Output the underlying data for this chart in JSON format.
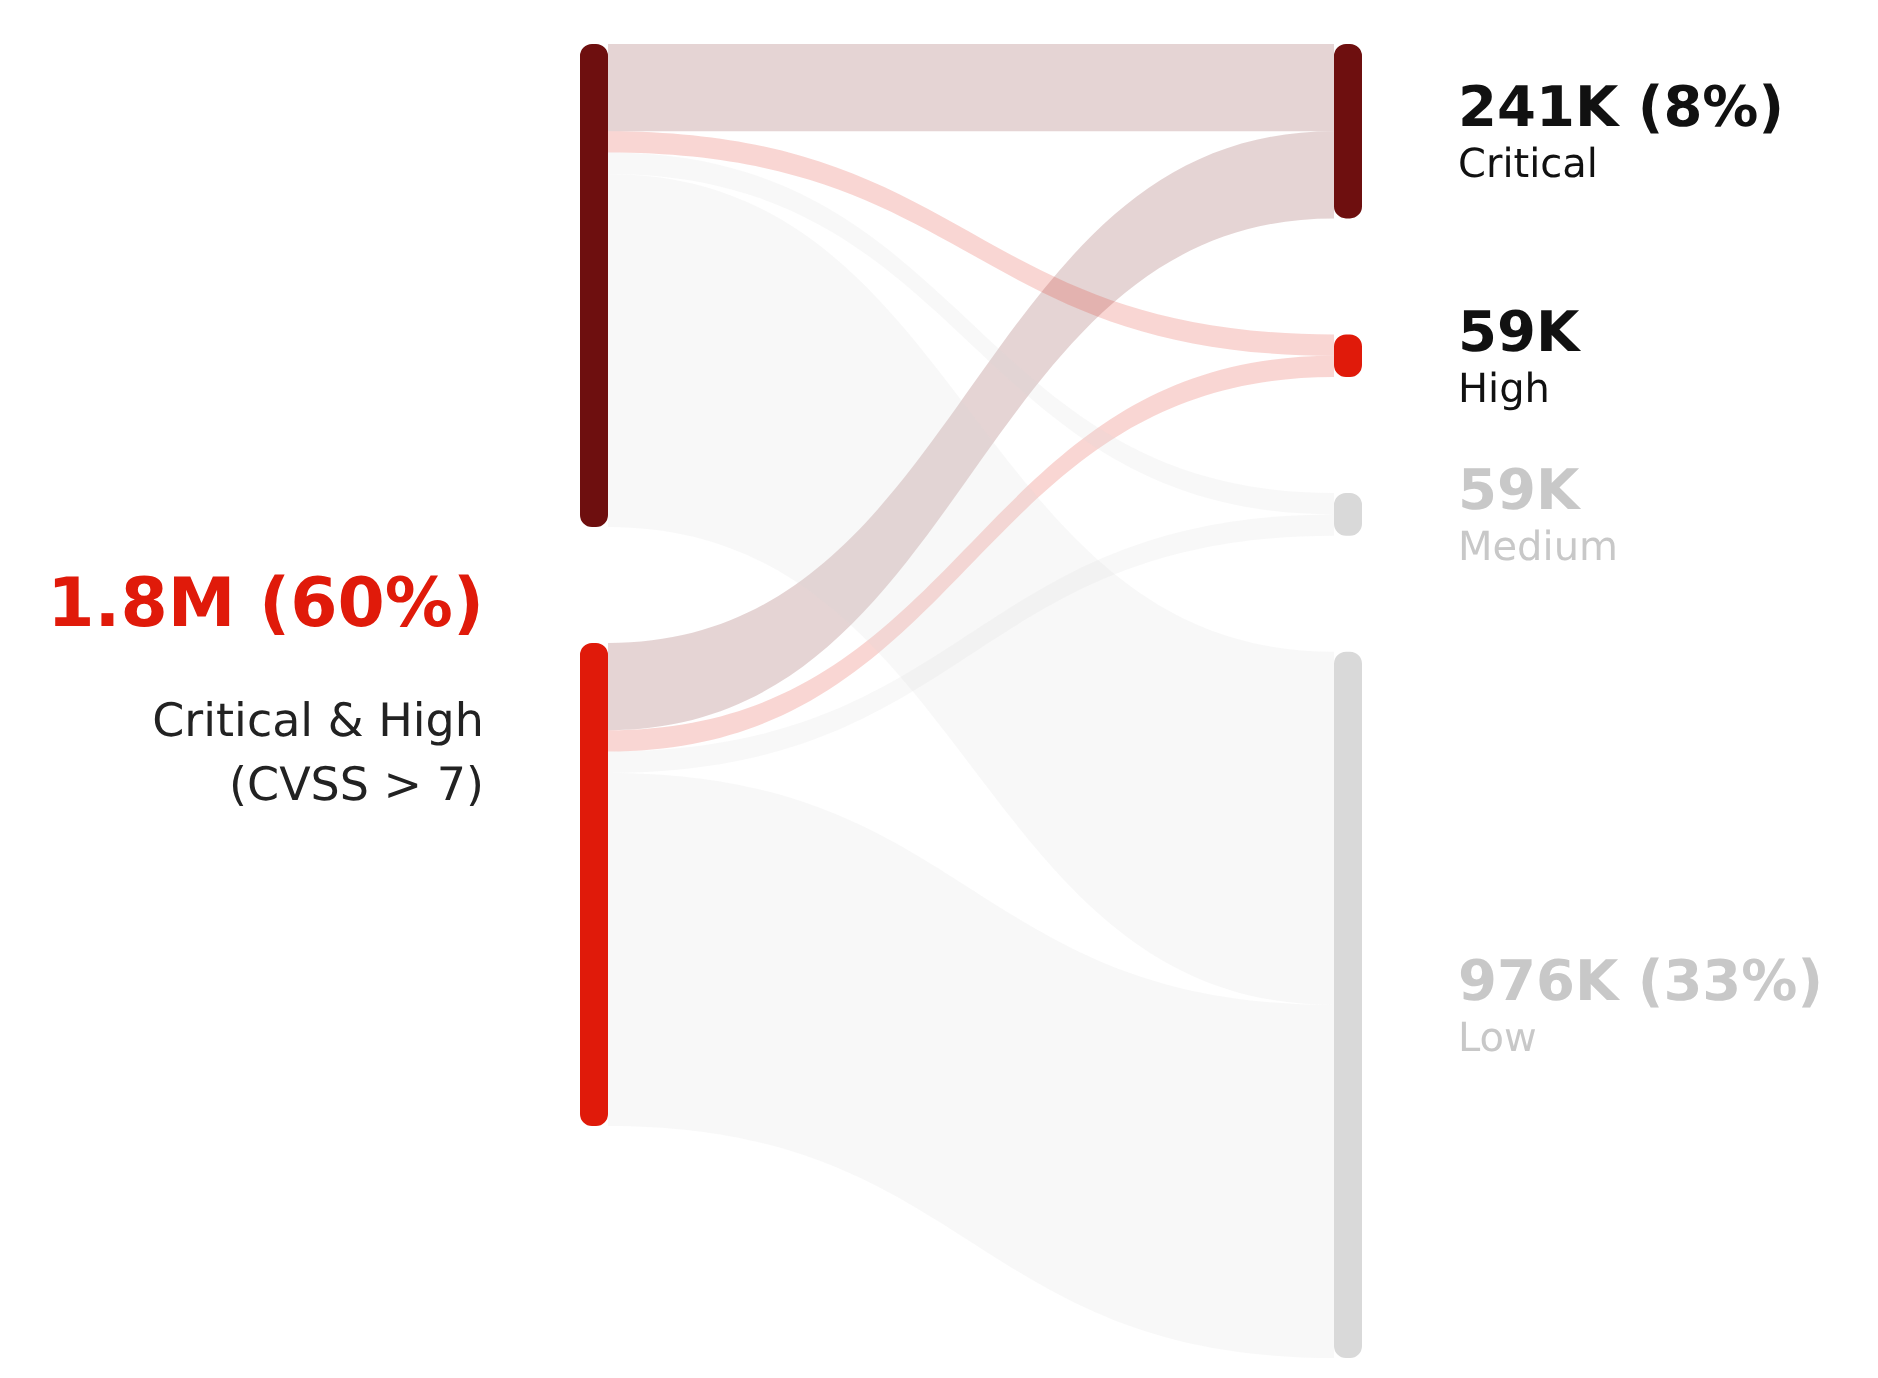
{
  "chart_data": {
    "type": "other",
    "categories": [
      null,
      null,
      "Critical",
      "High",
      "Medium",
      "Low"
    ],
    "values": [
      null,
      null,
      241000,
      59000,
      59000,
      976000
    ],
    "value_labels": [
      null,
      null,
      "241K (8%)",
      "59K",
      "59K",
      "976K (33%)"
    ],
    "colors": [
      "#6e0f0f",
      "#e01a0a",
      "#6e0f0f",
      "#e01a0a",
      "#d9d9d9",
      "#d9d9d9"
    ],
    "annotations": [
      "1.8M (60%)",
      "Critical & High\n(CVSS > 7)"
    ]
  }
}
